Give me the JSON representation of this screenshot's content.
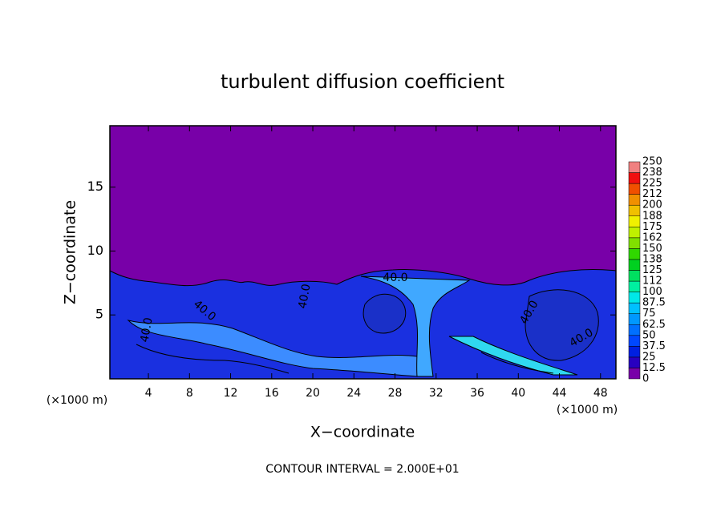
{
  "chart_data": {
    "type": "contour",
    "title": "turbulent diffusion coefficient",
    "x_label": "X−coordinate",
    "y_label": "Z−coordinate",
    "x_unit": "(×1000 m)",
    "y_unit": "(×1000 m)",
    "footer": "CONTOUR INTERVAL = 2.000E+01",
    "xlim": [
      0.25,
      49.5
    ],
    "xticks": [
      4,
      8,
      12,
      16,
      20,
      24,
      28,
      32,
      36,
      40,
      44,
      48
    ],
    "ylim": [
      0,
      19.8
    ],
    "yticks": [
      5,
      10,
      15
    ],
    "annotations": [
      "40.0",
      "40.0",
      "40.0",
      "40.0",
      "40.0",
      "40.0"
    ],
    "colorbar": {
      "levels": [
        0,
        12.5,
        25,
        37.5,
        50,
        62.5,
        75,
        87.5,
        100,
        112,
        125,
        138,
        150,
        162,
        175,
        188,
        200,
        212,
        225,
        238,
        250
      ],
      "colors": [
        "#7800a8",
        "#2800c0",
        "#0020e0",
        "#0048ff",
        "#0070ff",
        "#0098ff",
        "#00c0ff",
        "#00e8e8",
        "#00f0a0",
        "#00e060",
        "#00d020",
        "#30d800",
        "#80e000",
        "#c0f000",
        "#f0f000",
        "#f0c000",
        "#f09000",
        "#f05000",
        "#f01010",
        "#f08080"
      ]
    }
  }
}
